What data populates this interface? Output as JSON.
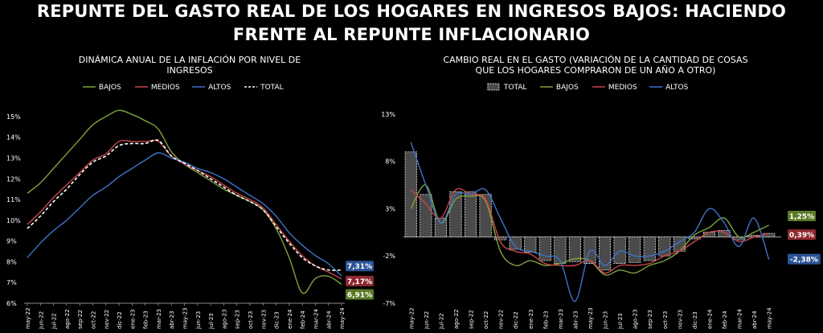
{
  "main_title": {
    "line1": "REPUNTE DEL GASTO REAL DE LOS HOGARES EN INGRESOS BAJOS: HACIENDO",
    "line2": "FRENTE AL REPUNTE INFLACIONARIO"
  },
  "colors": {
    "bajos": "#7fa33c",
    "medios": "#c9444a",
    "altos": "#3e73c9",
    "total": "#ffffff",
    "bar_fill": "#4a4a4a",
    "bar_stroke": "#ffffff"
  },
  "chart_data": [
    {
      "type": "line",
      "title_line1": "DINÁMICA ANUAL DE LA INFLACIÓN POR NIVEL DE",
      "title_line2": "INGRESOS",
      "x": [
        "may-22",
        "jun-22",
        "jul-22",
        "ago-22",
        "sep-22",
        "oct-22",
        "nov-22",
        "dic-22",
        "ene-23",
        "feb-23",
        "mar-23",
        "abr-23",
        "may-23",
        "jun-23",
        "jul-23",
        "ago-23",
        "sep-23",
        "oct-23",
        "nov-23",
        "dic-23",
        "ene-24",
        "feb-24",
        "mar-24",
        "abr-24",
        "may-24"
      ],
      "ylim": [
        6,
        15.5
      ],
      "yticks": [
        "6%",
        "7%",
        "8%",
        "9%",
        "10%",
        "11%",
        "12%",
        "13%",
        "14%",
        "15%"
      ],
      "legend": "top",
      "series": [
        {
          "name": "BAJOS",
          "key": "bajos",
          "dash": false,
          "values": [
            11.3,
            11.8,
            12.5,
            13.2,
            13.9,
            14.6,
            15.0,
            15.3,
            15.1,
            14.8,
            14.4,
            13.3,
            12.7,
            12.3,
            11.9,
            11.5,
            11.2,
            10.9,
            10.5,
            9.6,
            8.2,
            6.5,
            7.2,
            7.3,
            6.91
          ],
          "end_label": "6,91%"
        },
        {
          "name": "MEDIOS",
          "key": "medios",
          "dash": false,
          "values": [
            9.8,
            10.4,
            11.1,
            11.7,
            12.3,
            12.9,
            13.2,
            13.8,
            13.8,
            13.8,
            13.8,
            13.1,
            12.7,
            12.4,
            12.1,
            11.7,
            11.3,
            11.0,
            10.6,
            9.8,
            9.0,
            8.3,
            7.8,
            7.5,
            7.17
          ],
          "end_label": "7,17%"
        },
        {
          "name": "ALTOS",
          "key": "altos",
          "dash": false,
          "values": [
            8.2,
            8.9,
            9.5,
            10.0,
            10.6,
            11.2,
            11.6,
            12.1,
            12.5,
            12.9,
            13.25,
            13.0,
            12.8,
            12.5,
            12.3,
            12.0,
            11.6,
            11.2,
            10.8,
            10.2,
            9.4,
            8.8,
            8.3,
            7.9,
            7.31
          ],
          "end_label": "7,31%"
        },
        {
          "name": "TOTAL",
          "key": "total",
          "dash": true,
          "values": [
            9.6,
            10.2,
            10.9,
            11.5,
            12.2,
            12.8,
            13.1,
            13.6,
            13.7,
            13.7,
            13.85,
            13.1,
            12.75,
            12.4,
            12.0,
            11.6,
            11.2,
            10.9,
            10.5,
            9.7,
            8.9,
            8.2,
            7.8,
            7.6,
            7.6
          ]
        }
      ]
    },
    {
      "type": "bar+line",
      "title_line1": "CAMBIO REAL EN EL GASTO (VARIACIÓN DE LA CANTIDAD DE COSAS",
      "title_line2": "QUE LOS HOGARES COMPRARON DE UN AÑO A OTRO)",
      "x": [
        "may-22",
        "jun-22",
        "jul-22",
        "ago-22",
        "sep-22",
        "oct-22",
        "nov-22",
        "dic-22",
        "ene-23",
        "feb-23",
        "mar-23",
        "abr-23",
        "may-23",
        "jun-23",
        "jul-23",
        "ago-23",
        "sep-23",
        "oct-23",
        "nov-23",
        "dic-23",
        "ene-24",
        "feb-24",
        "mar-24",
        "abr-24",
        "may-24"
      ],
      "ylim": [
        -7,
        14
      ],
      "yticks": [
        "-7%",
        "-2%",
        "3%",
        "8%",
        "13%"
      ],
      "ytick_values": [
        -7,
        -2,
        3,
        8,
        13
      ],
      "legend": "top",
      "bars": {
        "name": "TOTAL",
        "key": "total",
        "values": [
          9.0,
          4.5,
          2.0,
          4.8,
          4.8,
          4.5,
          -0.3,
          -1.3,
          -1.6,
          -2.5,
          -2.8,
          -2.6,
          -2.8,
          -3.5,
          -2.8,
          -2.7,
          -2.5,
          -2.0,
          -1.5,
          -0.2,
          0.5,
          0.7,
          -0.3,
          0.2,
          0.39
        ],
        "end_label": "0,39%"
      },
      "series": [
        {
          "name": "BAJOS",
          "key": "bajos",
          "values": [
            3.0,
            5.5,
            1.5,
            4.0,
            4.3,
            3.8,
            -1.5,
            -3.0,
            -2.5,
            -3.0,
            -2.8,
            -2.3,
            -2.5,
            -4.0,
            -3.5,
            -3.8,
            -3.0,
            -2.5,
            -1.5,
            0.2,
            1.0,
            2.0,
            0.0,
            0.5,
            1.25
          ],
          "end_label": "1,25%"
        },
        {
          "name": "MEDIOS",
          "key": "medios",
          "values": [
            5.0,
            3.5,
            2.0,
            5.0,
            4.5,
            4.0,
            -0.5,
            -1.5,
            -1.8,
            -2.8,
            -3.0,
            -3.0,
            -2.5,
            -3.8,
            -3.0,
            -3.0,
            -2.8,
            -2.0,
            -1.5,
            -0.5,
            0.5,
            0.5,
            -0.5,
            0.0,
            0.39
          ]
        },
        {
          "name": "ALTOS",
          "key": "altos",
          "values": [
            10.0,
            5.5,
            1.5,
            4.5,
            4.5,
            5.0,
            2.0,
            -1.0,
            -1.5,
            -2.0,
            -2.5,
            -6.8,
            -1.5,
            -3.0,
            -1.5,
            -2.0,
            -2.0,
            -1.5,
            -0.5,
            0.5,
            3.0,
            1.5,
            -1.0,
            2.0,
            -2.38
          ],
          "end_label": "-2,38%"
        }
      ]
    }
  ]
}
